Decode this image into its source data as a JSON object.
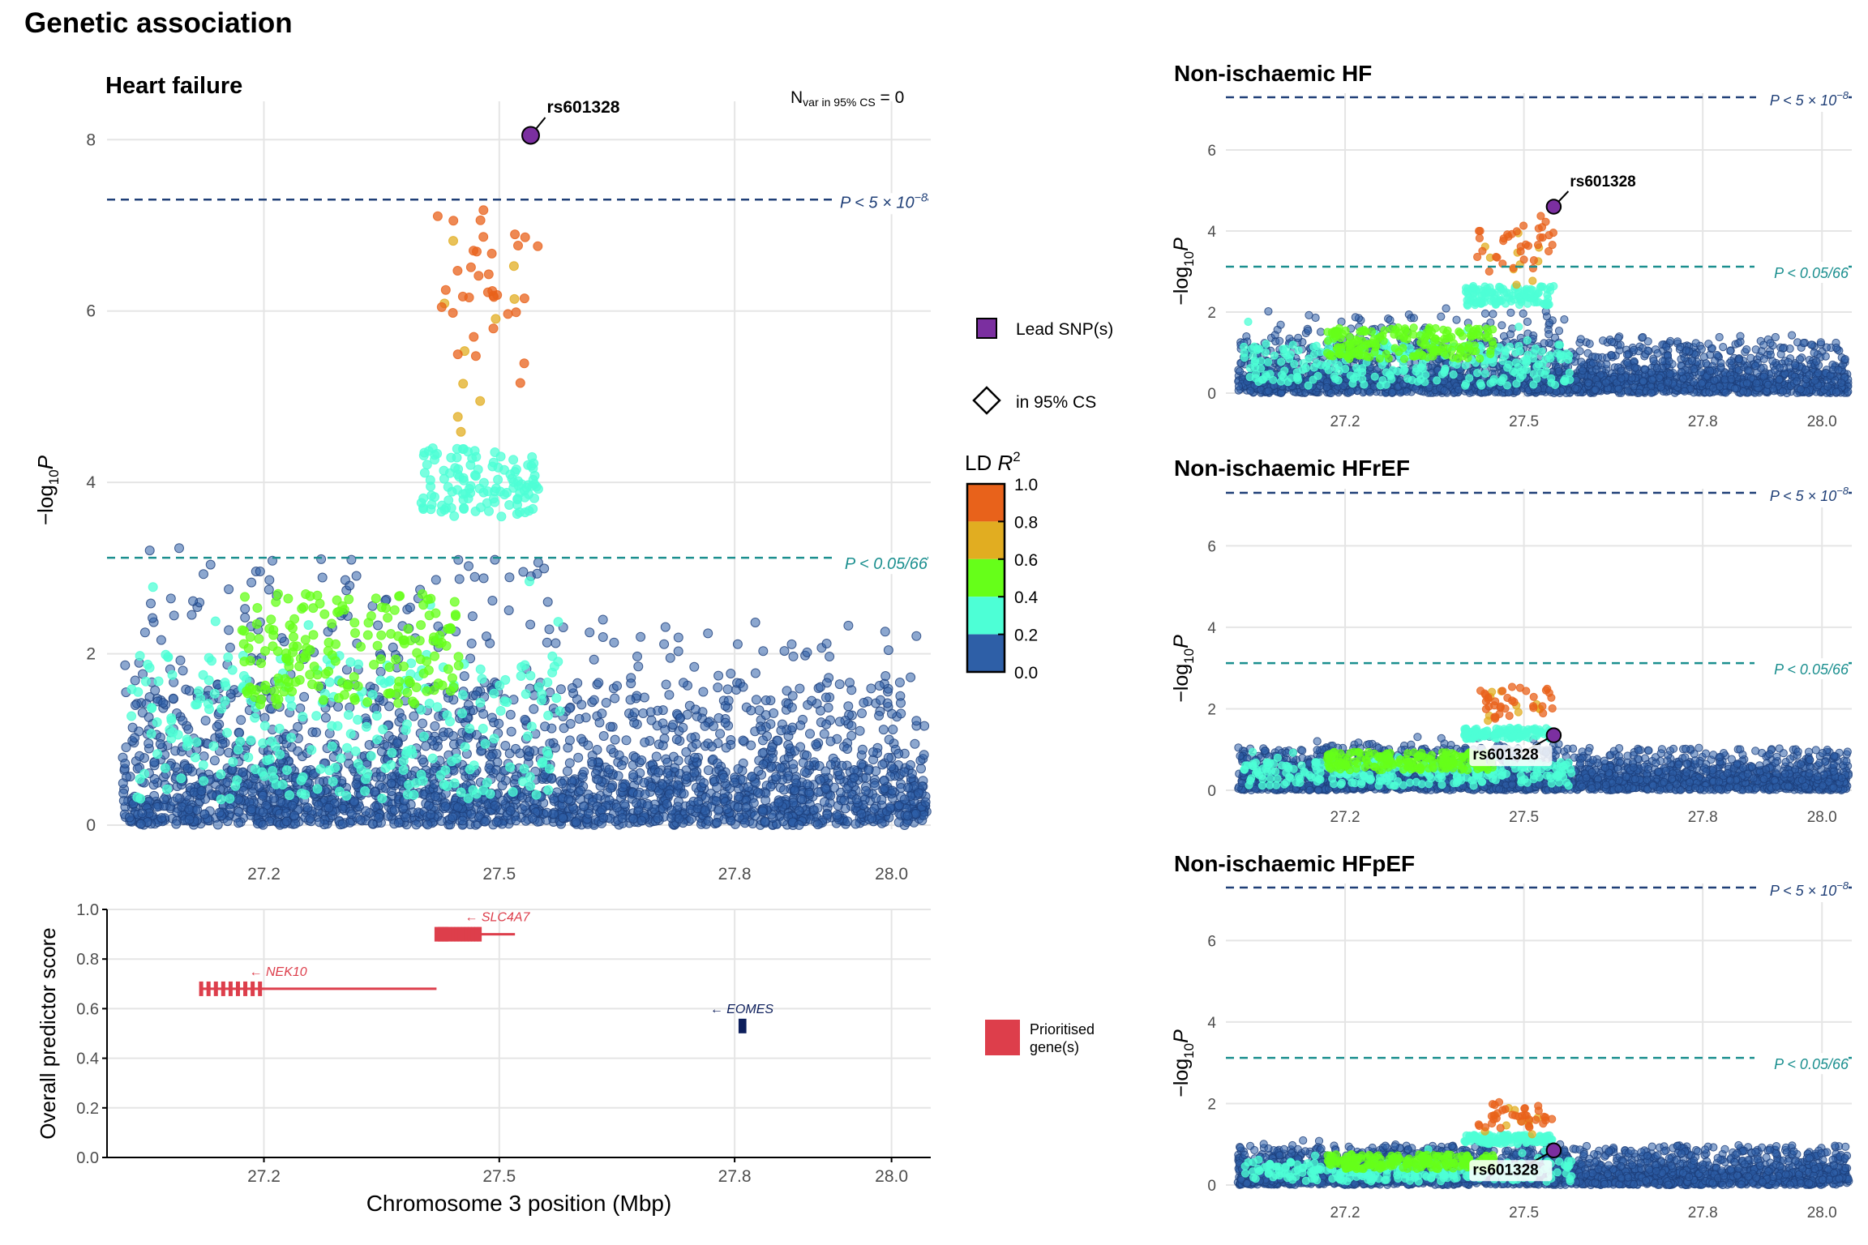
{
  "figure": {
    "title": "Genetic association",
    "lead_snp_label": "rs601328"
  },
  "legend": {
    "lead_snp": "Lead SNP(s)",
    "in_cs": "in 95% CS",
    "ld_title_prefix": "LD ",
    "ld_title_var": "R",
    "ld_title_sup": "2",
    "ld_breaks": [
      "1.0",
      "0.8",
      "0.6",
      "0.4",
      "0.2",
      "0.0"
    ],
    "prioritised": [
      "Prioritised",
      "gene(s)"
    ]
  },
  "colors": {
    "ld_bins": [
      "#2E5FA7",
      "#4DFFD6",
      "#66FF19",
      "#E1AD21",
      "#E8621B"
    ],
    "lead": "#7B2FA0",
    "threshold_genome": "#1F3F77",
    "threshold_bonf": "#1B8F8F",
    "gene_prioritised": "#DD3E4B",
    "gene_other": "#0D1F5C"
  },
  "labels": {
    "y_log_prefix": "−log",
    "y_log_sub": "10",
    "y_log_var": "P",
    "p_genome_prefix": "P < 5 × 10",
    "p_genome_exp": "−8",
    "p_bonf": "P < 0.05/66",
    "nvar_prefix": "N",
    "nvar_sub": "var in 95% CS",
    "nvar_value": " = 0"
  },
  "genes": {
    "y_label": "Overall predictor score",
    "x_label": "Chromosome 3 position (Mbp)"
  },
  "chart_data": [
    {
      "type": "scatter",
      "title": "Heart failure",
      "xlabel": "",
      "ylabel": "−log10 P",
      "xlim": [
        27.0,
        28.05
      ],
      "ylim": [
        0,
        8.4
      ],
      "x_ticks": [
        "27.2",
        "27.5",
        "27.8",
        "28.0"
      ],
      "x_tick_values": [
        27.2,
        27.5,
        27.8,
        28.0
      ],
      "y_ticks": [
        "0",
        "2",
        "4",
        "6",
        "8"
      ],
      "y_tick_values": [
        0,
        2,
        4,
        6,
        8
      ],
      "thresholds": [
        7.3,
        3.12
      ],
      "lead_snp": {
        "name": "rs601328",
        "x": 27.54,
        "y": 8.05
      },
      "n_var": 0
    },
    {
      "type": "scatter",
      "title": "Non-ischaemic HF",
      "xlim": [
        27.0,
        28.05
      ],
      "ylim": [
        0,
        7.3
      ],
      "x_ticks": [
        "27.2",
        "27.5",
        "27.8",
        "28.0"
      ],
      "x_tick_values": [
        27.2,
        27.5,
        27.8,
        28.0
      ],
      "y_ticks": [
        "0",
        "2",
        "4",
        "6"
      ],
      "y_tick_values": [
        0,
        2,
        4,
        6
      ],
      "thresholds": [
        7.3,
        3.12
      ],
      "lead_snp": {
        "name": "rs601328",
        "x": 27.55,
        "y": 4.6
      }
    },
    {
      "type": "scatter",
      "title": "Non-ischaemic HFrEF",
      "xlim": [
        27.0,
        28.05
      ],
      "ylim": [
        0,
        7.3
      ],
      "x_ticks": [
        "27.2",
        "27.5",
        "27.8",
        "28.0"
      ],
      "x_tick_values": [
        27.2,
        27.5,
        27.8,
        28.0
      ],
      "y_ticks": [
        "0",
        "2",
        "4",
        "6"
      ],
      "y_tick_values": [
        0,
        2,
        4,
        6
      ],
      "thresholds": [
        7.3,
        3.12
      ],
      "lead_snp": {
        "name": "rs601328",
        "x": 27.55,
        "y": 1.35
      }
    },
    {
      "type": "scatter",
      "title": "Non-ischaemic HFpEF",
      "xlim": [
        27.0,
        28.05
      ],
      "ylim": [
        0,
        7.3
      ],
      "x_ticks": [
        "27.2",
        "27.5",
        "27.8",
        "28.0"
      ],
      "x_tick_values": [
        27.2,
        27.5,
        27.8,
        28.0
      ],
      "y_ticks": [
        "0",
        "2",
        "4",
        "6"
      ],
      "y_tick_values": [
        0,
        2,
        4,
        6
      ],
      "thresholds": [
        7.3,
        3.12
      ],
      "lead_snp": {
        "name": "rs601328",
        "x": 27.55,
        "y": 0.85
      }
    },
    {
      "type": "gene_track",
      "xlim": [
        27.0,
        28.05
      ],
      "ylim": [
        0,
        1.0
      ],
      "x_ticks": [
        "27.2",
        "27.5",
        "27.8",
        "28.0"
      ],
      "x_tick_values": [
        27.2,
        27.5,
        27.8,
        28.0
      ],
      "y_ticks": [
        "0.0",
        "0.2",
        "0.4",
        "0.6",
        "0.8",
        "1.0"
      ],
      "y_tick_values": [
        0,
        0.2,
        0.4,
        0.6,
        0.8,
        1.0
      ],
      "genes": [
        {
          "name": "SLC4A7",
          "label": "← SLC4A7",
          "start": 27.42,
          "end": 27.52,
          "score": 0.9,
          "prioritised": true
        },
        {
          "name": "NEK10",
          "label": "← NEK10",
          "start": 27.12,
          "end": 27.42,
          "score": 0.68,
          "prioritised": true
        },
        {
          "name": "EOMES",
          "label": "← EOMES",
          "start": 27.805,
          "end": 27.815,
          "score": 0.53,
          "prioritised": false
        }
      ]
    }
  ]
}
